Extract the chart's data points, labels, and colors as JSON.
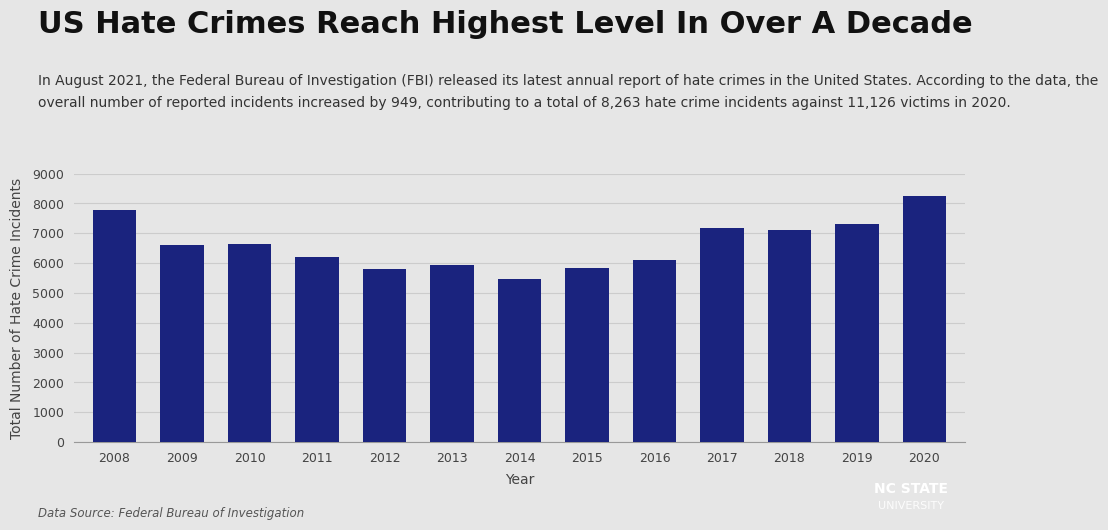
{
  "title": "US Hate Crimes Reach Highest Level In Over A Decade",
  "subtitle_line1": "In August 2021, the Federal Bureau of Investigation (FBI) released its latest annual report of hate crimes in the United States. According to the data, the",
  "subtitle_line2": "overall number of reported incidents increased by 949, contributing to a total of 8,263 hate crime incidents against 11,126 victims in 2020.",
  "years": [
    2008,
    2009,
    2010,
    2011,
    2012,
    2013,
    2014,
    2015,
    2016,
    2017,
    2018,
    2019,
    2020
  ],
  "values": [
    7783,
    6604,
    6628,
    6222,
    5796,
    5928,
    5479,
    5850,
    6121,
    7175,
    7120,
    7314,
    8263
  ],
  "bar_color": "#1a237e",
  "xlabel": "Year",
  "ylabel": "Total Number of Hate Crime Incidents",
  "ylim": [
    0,
    9000
  ],
  "yticks": [
    0,
    1000,
    2000,
    3000,
    4000,
    5000,
    6000,
    7000,
    8000,
    9000
  ],
  "data_source": "Data Source: Federal Bureau of Investigation",
  "background_color": "#e6e6e6",
  "plot_bg_color": "#e6e6e6",
  "grid_color": "#cccccc",
  "title_fontsize": 22,
  "subtitle_fontsize": 10,
  "axis_label_fontsize": 10,
  "tick_fontsize": 9,
  "nc_state_box_color": "#cc2222",
  "nc_state_text_line1": "NC STATE",
  "nc_state_text_line2": "UNIVERSITY"
}
